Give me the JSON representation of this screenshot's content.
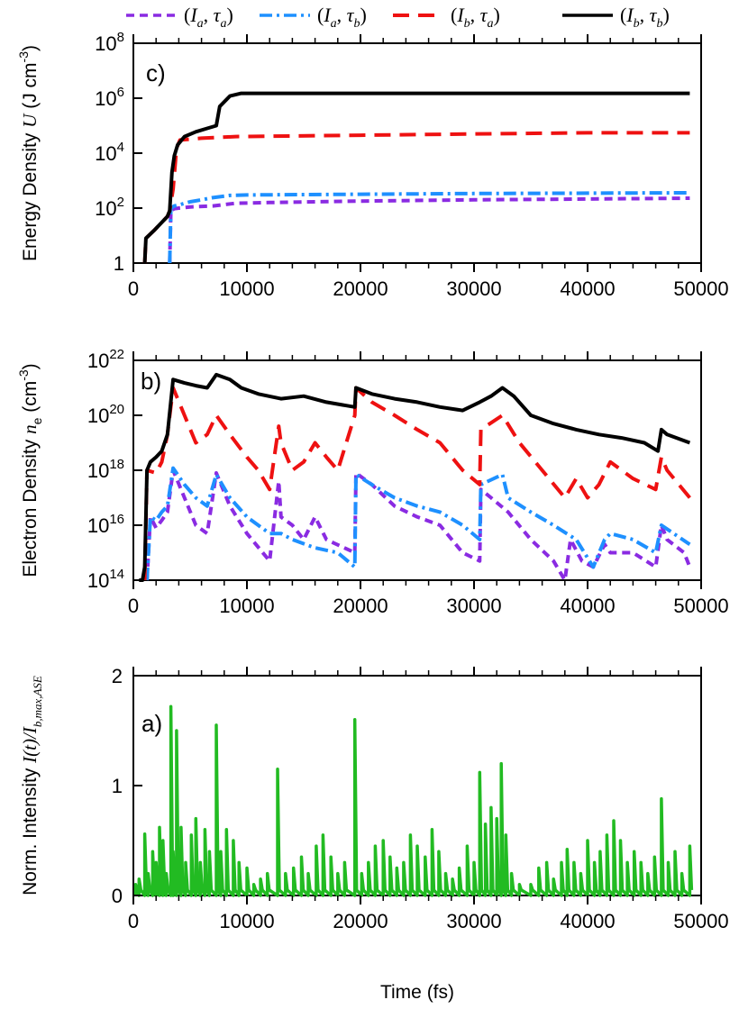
{
  "figure": {
    "xlabel": "Time (fs)",
    "xlim": [
      0,
      50000
    ],
    "xticks": [
      0,
      10000,
      20000,
      30000,
      40000,
      50000
    ]
  },
  "legend": {
    "items": [
      {
        "label": "(Ia, τa)",
        "base1": "I",
        "sub1": "a",
        "base2": "τ",
        "sub2": "a",
        "color": "#8a2be2",
        "dash": "9,6"
      },
      {
        "label": "(Ia, τb)",
        "base1": "I",
        "sub1": "a",
        "base2": "τ",
        "sub2": "b",
        "color": "#1e90ff",
        "dash": "14,5,3,5"
      },
      {
        "label": "(Ib, τa)",
        "base1": "I",
        "sub1": "b",
        "base2": "τ",
        "sub2": "a",
        "color": "#ee1111",
        "dash": "18,10"
      },
      {
        "label": "(Ib, τb)",
        "base1": "I",
        "sub1": "b",
        "base2": "τ",
        "sub2": "b",
        "color": "#000000",
        "dash": ""
      }
    ]
  },
  "panels": {
    "c": {
      "label": "c)",
      "ylabel_main": "Energy Density ",
      "ylabel_sym": "U",
      "ylabel_unit": " (J cm",
      "ylabel_exp": "-3",
      "ylabel_close": ")"
    },
    "b": {
      "label": "b)",
      "ylabel_main": "Electron Density ",
      "ylabel_sym": "n",
      "ylabel_sub": "e",
      "ylabel_unit": " (cm",
      "ylabel_exp": "-3",
      "ylabel_close": ")"
    },
    "a": {
      "label": "a)",
      "ylabel_main": "Norm. Intensity ",
      "ylabel_sym": "I(t)/I",
      "ylabel_sub": "b,max,ASE"
    }
  },
  "tick_text": {
    "c_one": "1",
    "c_base": "10",
    "b_base": "10",
    "a_ticks": [
      "0",
      "1",
      "2"
    ]
  },
  "chart_data": [
    {
      "id": "c",
      "type": "line",
      "yscale": "log",
      "title": "c) Energy Density U (J cm^-3)",
      "xlabel": "",
      "ylabel": "Energy Density U (J cm^-3)",
      "xlim": [
        0,
        50000
      ],
      "ylim": [
        1,
        100000000
      ],
      "ytick_exponents": [
        0,
        2,
        4,
        6,
        8
      ],
      "series": [
        {
          "name": "(Ia, τa)",
          "x": [
            3200,
            3300,
            3600,
            4000,
            5000,
            7000,
            9000,
            12000,
            20000,
            30000,
            40000,
            49000
          ],
          "y": [
            1,
            80,
            95,
            100,
            110,
            120,
            150,
            160,
            180,
            200,
            215,
            230
          ]
        },
        {
          "name": "(Ia, τb)",
          "x": [
            3200,
            3300,
            3600,
            4000,
            5000,
            6000,
            7000,
            8500,
            10000,
            20000,
            30000,
            40000,
            49000
          ],
          "y": [
            1,
            100,
            120,
            130,
            170,
            200,
            240,
            290,
            300,
            320,
            340,
            350,
            360
          ]
        },
        {
          "name": "(Ib, τa)",
          "x": [
            1000,
            1100,
            1800,
            2500,
            3000,
            3200,
            3500,
            3800,
            4100,
            6000,
            9000,
            20000,
            30000,
            40000,
            49000
          ],
          "y": [
            1,
            8,
            15,
            30,
            50,
            80,
            500,
            15000,
            30000,
            35000,
            40000,
            45000,
            50000,
            55000,
            55000
          ]
        },
        {
          "name": "(Ib, τb)",
          "x": [
            1000,
            1100,
            1800,
            2500,
            3000,
            3200,
            3400,
            3600,
            3900,
            4500,
            5500,
            6500,
            7300,
            7600,
            8500,
            9500,
            15000,
            30000,
            40000,
            49000
          ],
          "y": [
            1,
            8,
            15,
            30,
            50,
            80,
            2000,
            8000,
            20000,
            40000,
            60000,
            80000,
            100000,
            500000,
            1200000,
            1500000,
            1500000,
            1500000,
            1500000,
            1500000
          ]
        }
      ]
    },
    {
      "id": "b",
      "type": "line",
      "yscale": "log",
      "title": "b) Electron Density n_e (cm^-3)",
      "xlabel": "",
      "ylabel": "Electron Density n_e (cm^-3)",
      "xlim": [
        0,
        50000
      ],
      "ylim": [
        100000000000000,
        10000000000000000000000
      ],
      "ytick_exponents": [
        14,
        16,
        18,
        20,
        22
      ],
      "series": [
        {
          "name": "(Ia, τa)",
          "x": [
            1200,
            1500,
            2000,
            2500,
            3000,
            3500,
            4500,
            5500,
            6500,
            7300,
            8500,
            10000,
            12000,
            12800,
            13000,
            14000,
            15000,
            16000,
            17000,
            19500,
            19600,
            21000,
            23000,
            25000,
            27000,
            29000,
            30500,
            30600,
            31500,
            33000,
            35000,
            37000,
            38000,
            38500,
            39500,
            40500,
            41500,
            42000,
            44000,
            46000,
            46500,
            47000,
            48500,
            49000
          ],
          "y": [
            100000000000000,
            20000000000000000,
            8000000000000000,
            15000000000000000,
            30000000000000000,
            1000000000000000000,
            100000000000000000,
            10000000000000000,
            5000000000000000,
            800000000000000000,
            50000000000000000,
            5000000000000000,
            500000000000000,
            400000000000000000,
            20000000000000000,
            10000000000000000,
            3000000000000000,
            20000000000000000,
            3000000000000000,
            1000000000000000,
            800000000000000000,
            300000000000000000,
            50000000000000000,
            20000000000000000,
            10000000000000000,
            1000000000000000,
            500000000000000,
            200000000000000000,
            100000000000000000,
            30000000000000000,
            3000000000000000,
            500000000000000,
            100000000000000,
            3000000000000000,
            500000000000000,
            300000000000000,
            2000000000000000,
            1000000000000000,
            1000000000000000,
            300000000000000,
            10000000000000000,
            3000000000000000,
            1000000000000000,
            300000000000000
          ]
        },
        {
          "name": "(Ia, τb)",
          "x": [
            1200,
            1500,
            2000,
            2500,
            3000,
            3500,
            4500,
            5500,
            6500,
            7300,
            8500,
            10000,
            12000,
            13000,
            14000,
            16000,
            18000,
            19500,
            19600,
            21000,
            23000,
            25000,
            27000,
            29000,
            30500,
            30600,
            32500,
            33000,
            35000,
            37000,
            39000,
            40500,
            41500,
            42000,
            44000,
            46000,
            46500,
            49000
          ],
          "y": [
            100000000000000,
            20000000000000000,
            15000000000000000,
            30000000000000000,
            50000000000000000,
            1200000000000000000,
            300000000000000000,
            100000000000000000,
            50000000000000000,
            700000000000000000,
            100000000000000000,
            20000000000000000,
            5000000000000000,
            5000000000000000,
            3000000000000000,
            1500000000000000,
            1000000000000000,
            300000000000000,
            700000000000000000,
            300000000000000000,
            100000000000000000,
            50000000000000000,
            30000000000000000,
            10000000000000000,
            3000000000000000,
            300000000000000000,
            700000000000000000,
            100000000000000000,
            30000000000000000,
            10000000000000000,
            3000000000000000,
            300000000000000,
            3000000000000000,
            5000000000000000,
            3000000000000000,
            1000000000000000,
            10000000000000000,
            2000000000000000
          ]
        },
        {
          "name": "(Ib, τa)",
          "x": [
            1000,
            1200,
            2000,
            2500,
            3000,
            3500,
            4500,
            5500,
            6500,
            7300,
            8500,
            10000,
            11000,
            12000,
            12800,
            13000,
            14000,
            15000,
            16000,
            17000,
            18000,
            19500,
            19600,
            21000,
            23000,
            25000,
            27000,
            29000,
            30500,
            30600,
            32500,
            34000,
            36000,
            38000,
            39000,
            40000,
            41000,
            42000,
            44000,
            46000,
            46500,
            47000,
            49000
          ],
          "y": [
            100000000000000,
            1000000000000000000,
            800000000000000000,
            2000000000000000000,
            20000000000000000000,
            1000000000000000000000,
            100000000000000000000,
            10000000000000000000,
            20000000000000000000,
            100000000000000000000,
            20000000000000000000,
            3000000000000000000,
            1000000000000000000,
            200000000000000000,
            40000000000000000000,
            10000000000000000000,
            1000000000000000000,
            2000000000000000000,
            10000000000000000000,
            3000000000000000000,
            1000000000000000000,
            100000000000000000000,
            1000000000000000000000,
            300000000000000000000,
            100000000000000000000,
            30000000000000000000,
            10000000000000000000,
            1000000000000000000,
            300000000000000000,
            30000000000000000000,
            100000000000000000000,
            10000000000000000000,
            1000000000000000000,
            100000000000000000,
            500000000000000000,
            100000000000000000,
            300000000000000000,
            2000000000000000000,
            500000000000000000,
            200000000000000000,
            3000000000000000000,
            1000000000000000000,
            100000000000000000
          ]
        },
        {
          "name": "(Ib, τb)",
          "x": [
            500,
            800,
            1000,
            1200,
            1500,
            2000,
            2500,
            3000,
            3500,
            4500,
            5500,
            6500,
            7300,
            8500,
            9500,
            11000,
            13000,
            15000,
            17000,
            19500,
            19600,
            21000,
            23000,
            25000,
            27000,
            29000,
            30500,
            31500,
            32500,
            33500,
            35000,
            37000,
            39000,
            41000,
            43000,
            45000,
            46200,
            46500,
            47000,
            49000
          ],
          "y": [
            100000000000000,
            100000000000000,
            300000000000000,
            1000000000000000000,
            2000000000000000000,
            3000000000000000000,
            5000000000000000000,
            20000000000000000000,
            2000000000000000000000,
            1500000000000000000000,
            1200000000000000000000,
            1000000000000000000000,
            3000000000000000000000,
            2000000000000000000000,
            1000000000000000000000,
            600000000000000000000,
            400000000000000000000,
            500000000000000000000,
            300000000000000000000,
            200000000000000000000,
            1000000000000000000000,
            600000000000000000000,
            400000000000000000000,
            300000000000000000000,
            200000000000000000000,
            150000000000000000000,
            300000000000000000000,
            500000000000000000000,
            1000000000000000000000,
            500000000000000000000,
            100000000000000000000,
            50000000000000000000,
            30000000000000000000,
            20000000000000000000,
            15000000000000000000,
            10000000000000000000,
            5000000000000000000,
            30000000000000000000,
            20000000000000000000,
            10000000000000000000
          ]
        }
      ]
    },
    {
      "id": "a",
      "type": "line",
      "yscale": "linear",
      "title": "a) Norm. Intensity I(t)/I_b,max,ASE",
      "xlabel": "Time (fs)",
      "ylabel": "Norm. Intensity I(t)/I_b,max,ASE",
      "xlim": [
        0,
        50000
      ],
      "ylim": [
        0,
        2
      ],
      "yticks": [
        0,
        1,
        2
      ],
      "color": "#22bb22",
      "series": [
        {
          "name": "I(t)",
          "x": [
            200,
            500,
            1000,
            1300,
            1700,
            2000,
            2300,
            2600,
            2900,
            3300,
            3500,
            3800,
            4200,
            4600,
            5100,
            5500,
            5900,
            6300,
            6700,
            7300,
            7700,
            8200,
            8800,
            9300,
            10000,
            10600,
            11200,
            11800,
            12700,
            13400,
            14100,
            14800,
            15400,
            16100,
            16700,
            17400,
            18000,
            18600,
            19500,
            20100,
            20700,
            21300,
            22000,
            22600,
            23200,
            23800,
            24400,
            25000,
            25700,
            26300,
            26900,
            27500,
            28100,
            28700,
            29400,
            30000,
            30500,
            31000,
            31500,
            32000,
            32400,
            32800,
            33300,
            34000,
            35000,
            35700,
            36400,
            37000,
            37700,
            38200,
            38800,
            39400,
            40000,
            40600,
            41100,
            41700,
            42300,
            42900,
            43500,
            44100,
            44700,
            45300,
            45900,
            46500,
            47100,
            47700,
            48300,
            49000
          ],
          "y": [
            0.1,
            0.15,
            0.56,
            0.2,
            0.4,
            0.3,
            0.62,
            0.5,
            0.2,
            1.72,
            0.4,
            1.5,
            0.62,
            0.3,
            0.55,
            0.7,
            0.3,
            0.6,
            0.4,
            1.55,
            0.4,
            0.6,
            0.5,
            0.3,
            0.25,
            0.1,
            0.15,
            0.2,
            1.15,
            0.2,
            0.25,
            0.35,
            0.2,
            0.45,
            0.55,
            0.35,
            0.2,
            0.3,
            1.6,
            0.2,
            0.3,
            0.45,
            0.5,
            0.35,
            0.25,
            0.3,
            0.55,
            0.45,
            0.35,
            0.6,
            0.4,
            0.2,
            0.15,
            0.25,
            0.45,
            0.3,
            1.12,
            0.65,
            0.8,
            0.7,
            1.2,
            0.55,
            0.2,
            0.1,
            0.1,
            0.25,
            0.3,
            0.15,
            0.3,
            0.42,
            0.3,
            0.2,
            0.5,
            0.3,
            0.4,
            0.55,
            0.68,
            0.5,
            0.3,
            0.4,
            0.3,
            0.2,
            0.35,
            0.88,
            0.3,
            0.4,
            0.2,
            0.45
          ]
        }
      ]
    }
  ]
}
